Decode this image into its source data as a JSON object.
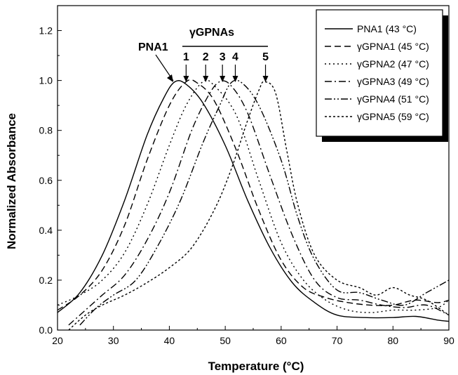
{
  "chart_data": {
    "type": "line",
    "xlabel": "Temperature (°C)",
    "ylabel": "Normalized Absorbance",
    "xlim": [
      20,
      90
    ],
    "ylim": [
      0.0,
      1.3
    ],
    "x_ticks": [
      "20",
      "30",
      "40",
      "50",
      "60",
      "70",
      "80",
      "90"
    ],
    "y_ticks": [
      "0.0",
      "0.2",
      "0.4",
      "0.6",
      "0.8",
      "1.0",
      "1.2"
    ],
    "grid": false,
    "legend_position": "top-right",
    "series": [
      {
        "name": "PNA1 (43 °C)",
        "dash": "",
        "points": [
          [
            20,
            0.07
          ],
          [
            24,
            0.15
          ],
          [
            28,
            0.3
          ],
          [
            32,
            0.52
          ],
          [
            36,
            0.78
          ],
          [
            39,
            0.93
          ],
          [
            41,
            0.995
          ],
          [
            43,
            0.985
          ],
          [
            46,
            0.91
          ],
          [
            50,
            0.74
          ],
          [
            54,
            0.52
          ],
          [
            58,
            0.33
          ],
          [
            62,
            0.19
          ],
          [
            66,
            0.11
          ],
          [
            70,
            0.06
          ],
          [
            75,
            0.05
          ],
          [
            80,
            0.05
          ],
          [
            84,
            0.055
          ],
          [
            88,
            0.04
          ],
          [
            90,
            0.035
          ]
        ]
      },
      {
        "name": "γGPNA1 (45 °C)",
        "dash": "9,5",
        "points": [
          [
            20,
            0.08
          ],
          [
            24,
            0.14
          ],
          [
            28,
            0.24
          ],
          [
            32,
            0.42
          ],
          [
            36,
            0.68
          ],
          [
            40,
            0.9
          ],
          [
            43,
            0.995
          ],
          [
            45,
            0.99
          ],
          [
            48,
            0.92
          ],
          [
            52,
            0.72
          ],
          [
            56,
            0.48
          ],
          [
            60,
            0.28
          ],
          [
            64,
            0.17
          ],
          [
            68,
            0.13
          ],
          [
            72,
            0.11
          ],
          [
            76,
            0.1
          ],
          [
            80,
            0.1
          ],
          [
            84,
            0.12
          ],
          [
            88,
            0.11
          ],
          [
            90,
            0.12
          ]
        ]
      },
      {
        "name": "γGPNA2 (47 °C)",
        "dash": "2,4",
        "points": [
          [
            20,
            0.1
          ],
          [
            24,
            0.14
          ],
          [
            28,
            0.2
          ],
          [
            32,
            0.31
          ],
          [
            36,
            0.5
          ],
          [
            40,
            0.74
          ],
          [
            43,
            0.9
          ],
          [
            46,
            0.995
          ],
          [
            48,
            0.98
          ],
          [
            52,
            0.86
          ],
          [
            56,
            0.6
          ],
          [
            60,
            0.35
          ],
          [
            64,
            0.2
          ],
          [
            68,
            0.12
          ],
          [
            72,
            0.08
          ],
          [
            76,
            0.07
          ],
          [
            80,
            0.08
          ],
          [
            84,
            0.08
          ],
          [
            88,
            0.09
          ],
          [
            90,
            0.12
          ]
        ]
      },
      {
        "name": "γGPNA3 (49 °C)",
        "dash": "10,4,2,4",
        "points": [
          [
            22,
            0.02
          ],
          [
            25,
            0.08
          ],
          [
            28,
            0.14
          ],
          [
            32,
            0.22
          ],
          [
            36,
            0.36
          ],
          [
            40,
            0.55
          ],
          [
            44,
            0.8
          ],
          [
            47,
            0.94
          ],
          [
            49,
            0.995
          ],
          [
            51,
            0.98
          ],
          [
            54,
            0.87
          ],
          [
            58,
            0.62
          ],
          [
            62,
            0.38
          ],
          [
            66,
            0.2
          ],
          [
            70,
            0.13
          ],
          [
            74,
            0.12
          ],
          [
            78,
            0.1
          ],
          [
            82,
            0.09
          ],
          [
            86,
            0.1
          ],
          [
            90,
            0.06
          ]
        ]
      },
      {
        "name": "γGPNA4 (51 °C)",
        "dash": "10,3,2,3,2,3",
        "points": [
          [
            24,
            0.02
          ],
          [
            27,
            0.09
          ],
          [
            30,
            0.14
          ],
          [
            34,
            0.2
          ],
          [
            38,
            0.34
          ],
          [
            42,
            0.52
          ],
          [
            46,
            0.75
          ],
          [
            49,
            0.9
          ],
          [
            51,
            0.99
          ],
          [
            53,
            0.99
          ],
          [
            56,
            0.9
          ],
          [
            60,
            0.68
          ],
          [
            63,
            0.45
          ],
          [
            66,
            0.28
          ],
          [
            70,
            0.16
          ],
          [
            74,
            0.15
          ],
          [
            78,
            0.12
          ],
          [
            82,
            0.1
          ],
          [
            86,
            0.15
          ],
          [
            90,
            0.2
          ]
        ]
      },
      {
        "name": "γGPNA5 (59 °C)",
        "dash": "3,3",
        "points": [
          [
            22,
            0.0
          ],
          [
            25,
            0.06
          ],
          [
            28,
            0.1
          ],
          [
            32,
            0.14
          ],
          [
            36,
            0.19
          ],
          [
            40,
            0.25
          ],
          [
            44,
            0.33
          ],
          [
            48,
            0.48
          ],
          [
            51,
            0.64
          ],
          [
            54,
            0.84
          ],
          [
            56,
            0.96
          ],
          [
            57,
            0.995
          ],
          [
            59,
            0.95
          ],
          [
            61,
            0.72
          ],
          [
            63,
            0.5
          ],
          [
            66,
            0.3
          ],
          [
            70,
            0.2
          ],
          [
            74,
            0.17
          ],
          [
            77,
            0.14
          ],
          [
            80,
            0.17
          ],
          [
            83,
            0.14
          ],
          [
            86,
            0.12
          ],
          [
            90,
            0.06
          ]
        ]
      }
    ],
    "annotations": {
      "pna1_label": "PNA1",
      "group_label": "γGPNAs",
      "numbers": [
        "1",
        "2",
        "3",
        "4",
        "5"
      ]
    }
  }
}
